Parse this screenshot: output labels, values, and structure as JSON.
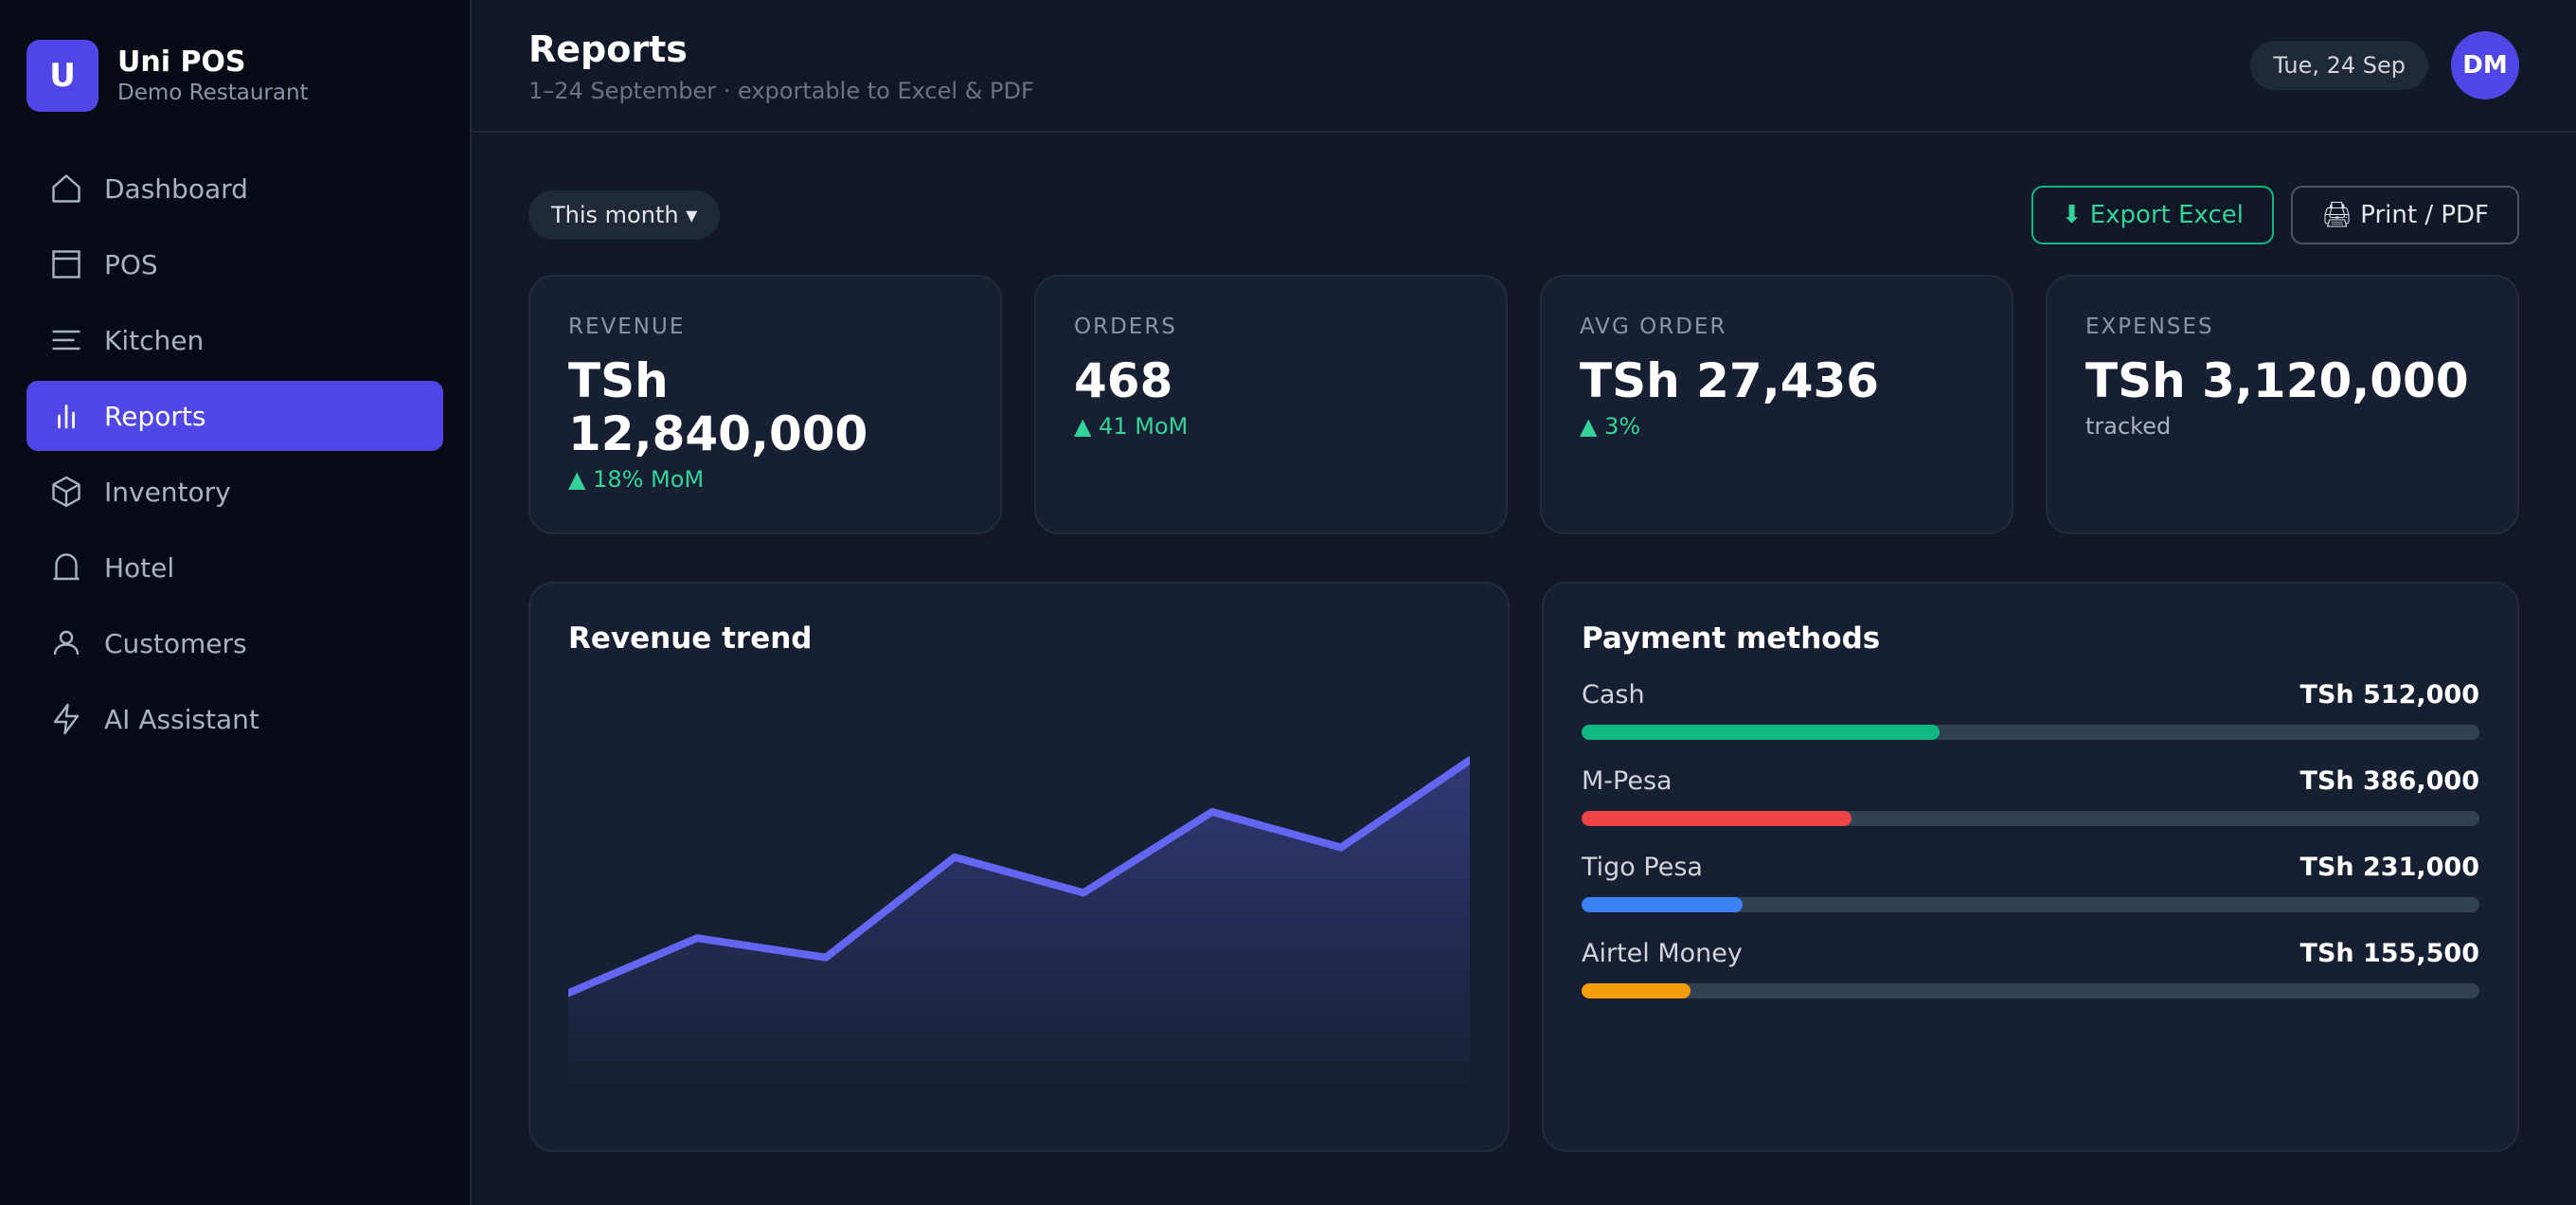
{
  "brand": {
    "logo_letter": "U",
    "name": "Uni POS",
    "subtitle": "Demo Restaurant"
  },
  "sidebar": {
    "items": [
      {
        "label": "Dashboard",
        "icon": "home-icon",
        "active": false
      },
      {
        "label": "POS",
        "icon": "register-icon",
        "active": false
      },
      {
        "label": "Kitchen",
        "icon": "list-icon",
        "active": false
      },
      {
        "label": "Reports",
        "icon": "bar-chart-icon",
        "active": true
      },
      {
        "label": "Inventory",
        "icon": "box-icon",
        "active": false
      },
      {
        "label": "Hotel",
        "icon": "bell-icon",
        "active": false
      },
      {
        "label": "Customers",
        "icon": "user-icon",
        "active": false
      },
      {
        "label": "AI Assistant",
        "icon": "lightning-icon",
        "active": false
      }
    ]
  },
  "header": {
    "title": "Reports",
    "subtitle": "1–24 September · exportable to Excel & PDF",
    "date": "Tue, 24 Sep",
    "avatar_initials": "DM"
  },
  "controls": {
    "period": "This month ▾",
    "export_excel": "⬇ Export Excel",
    "print_pdf": "🖨 Print / PDF"
  },
  "stats": [
    {
      "label": "Revenue",
      "value": "TSh 12,840,000",
      "delta": "▲ 18% MoM"
    },
    {
      "label": "Orders",
      "value": "468",
      "delta": "▲ 41 MoM"
    },
    {
      "label": "Avg order",
      "value": "TSh 27,436",
      "delta": "▲ 3%"
    },
    {
      "label": "Expenses",
      "value": "TSh 3,120,000",
      "note": "tracked"
    }
  ],
  "trend": {
    "title": "Revenue trend",
    "chart_data": {
      "type": "area",
      "values": [
        28,
        45,
        39,
        70,
        59,
        84,
        73,
        100
      ],
      "ylim": [
        0,
        120
      ],
      "line_color": "#6366f1",
      "grid": false
    }
  },
  "payments": {
    "title": "Payment methods",
    "items": [
      {
        "name": "Cash",
        "amount": "TSh 512,000",
        "value": 512000,
        "color": "#10b981"
      },
      {
        "name": "M-Pesa",
        "amount": "TSh 386,000",
        "value": 386000,
        "color": "#ef4444"
      },
      {
        "name": "Tigo Pesa",
        "amount": "TSh 231,000",
        "value": 231000,
        "color": "#3b82f6"
      },
      {
        "name": "Airtel Money",
        "amount": "TSh 155,500",
        "value": 155500,
        "color": "#f59e0b"
      }
    ],
    "scale_max": 1285000
  }
}
